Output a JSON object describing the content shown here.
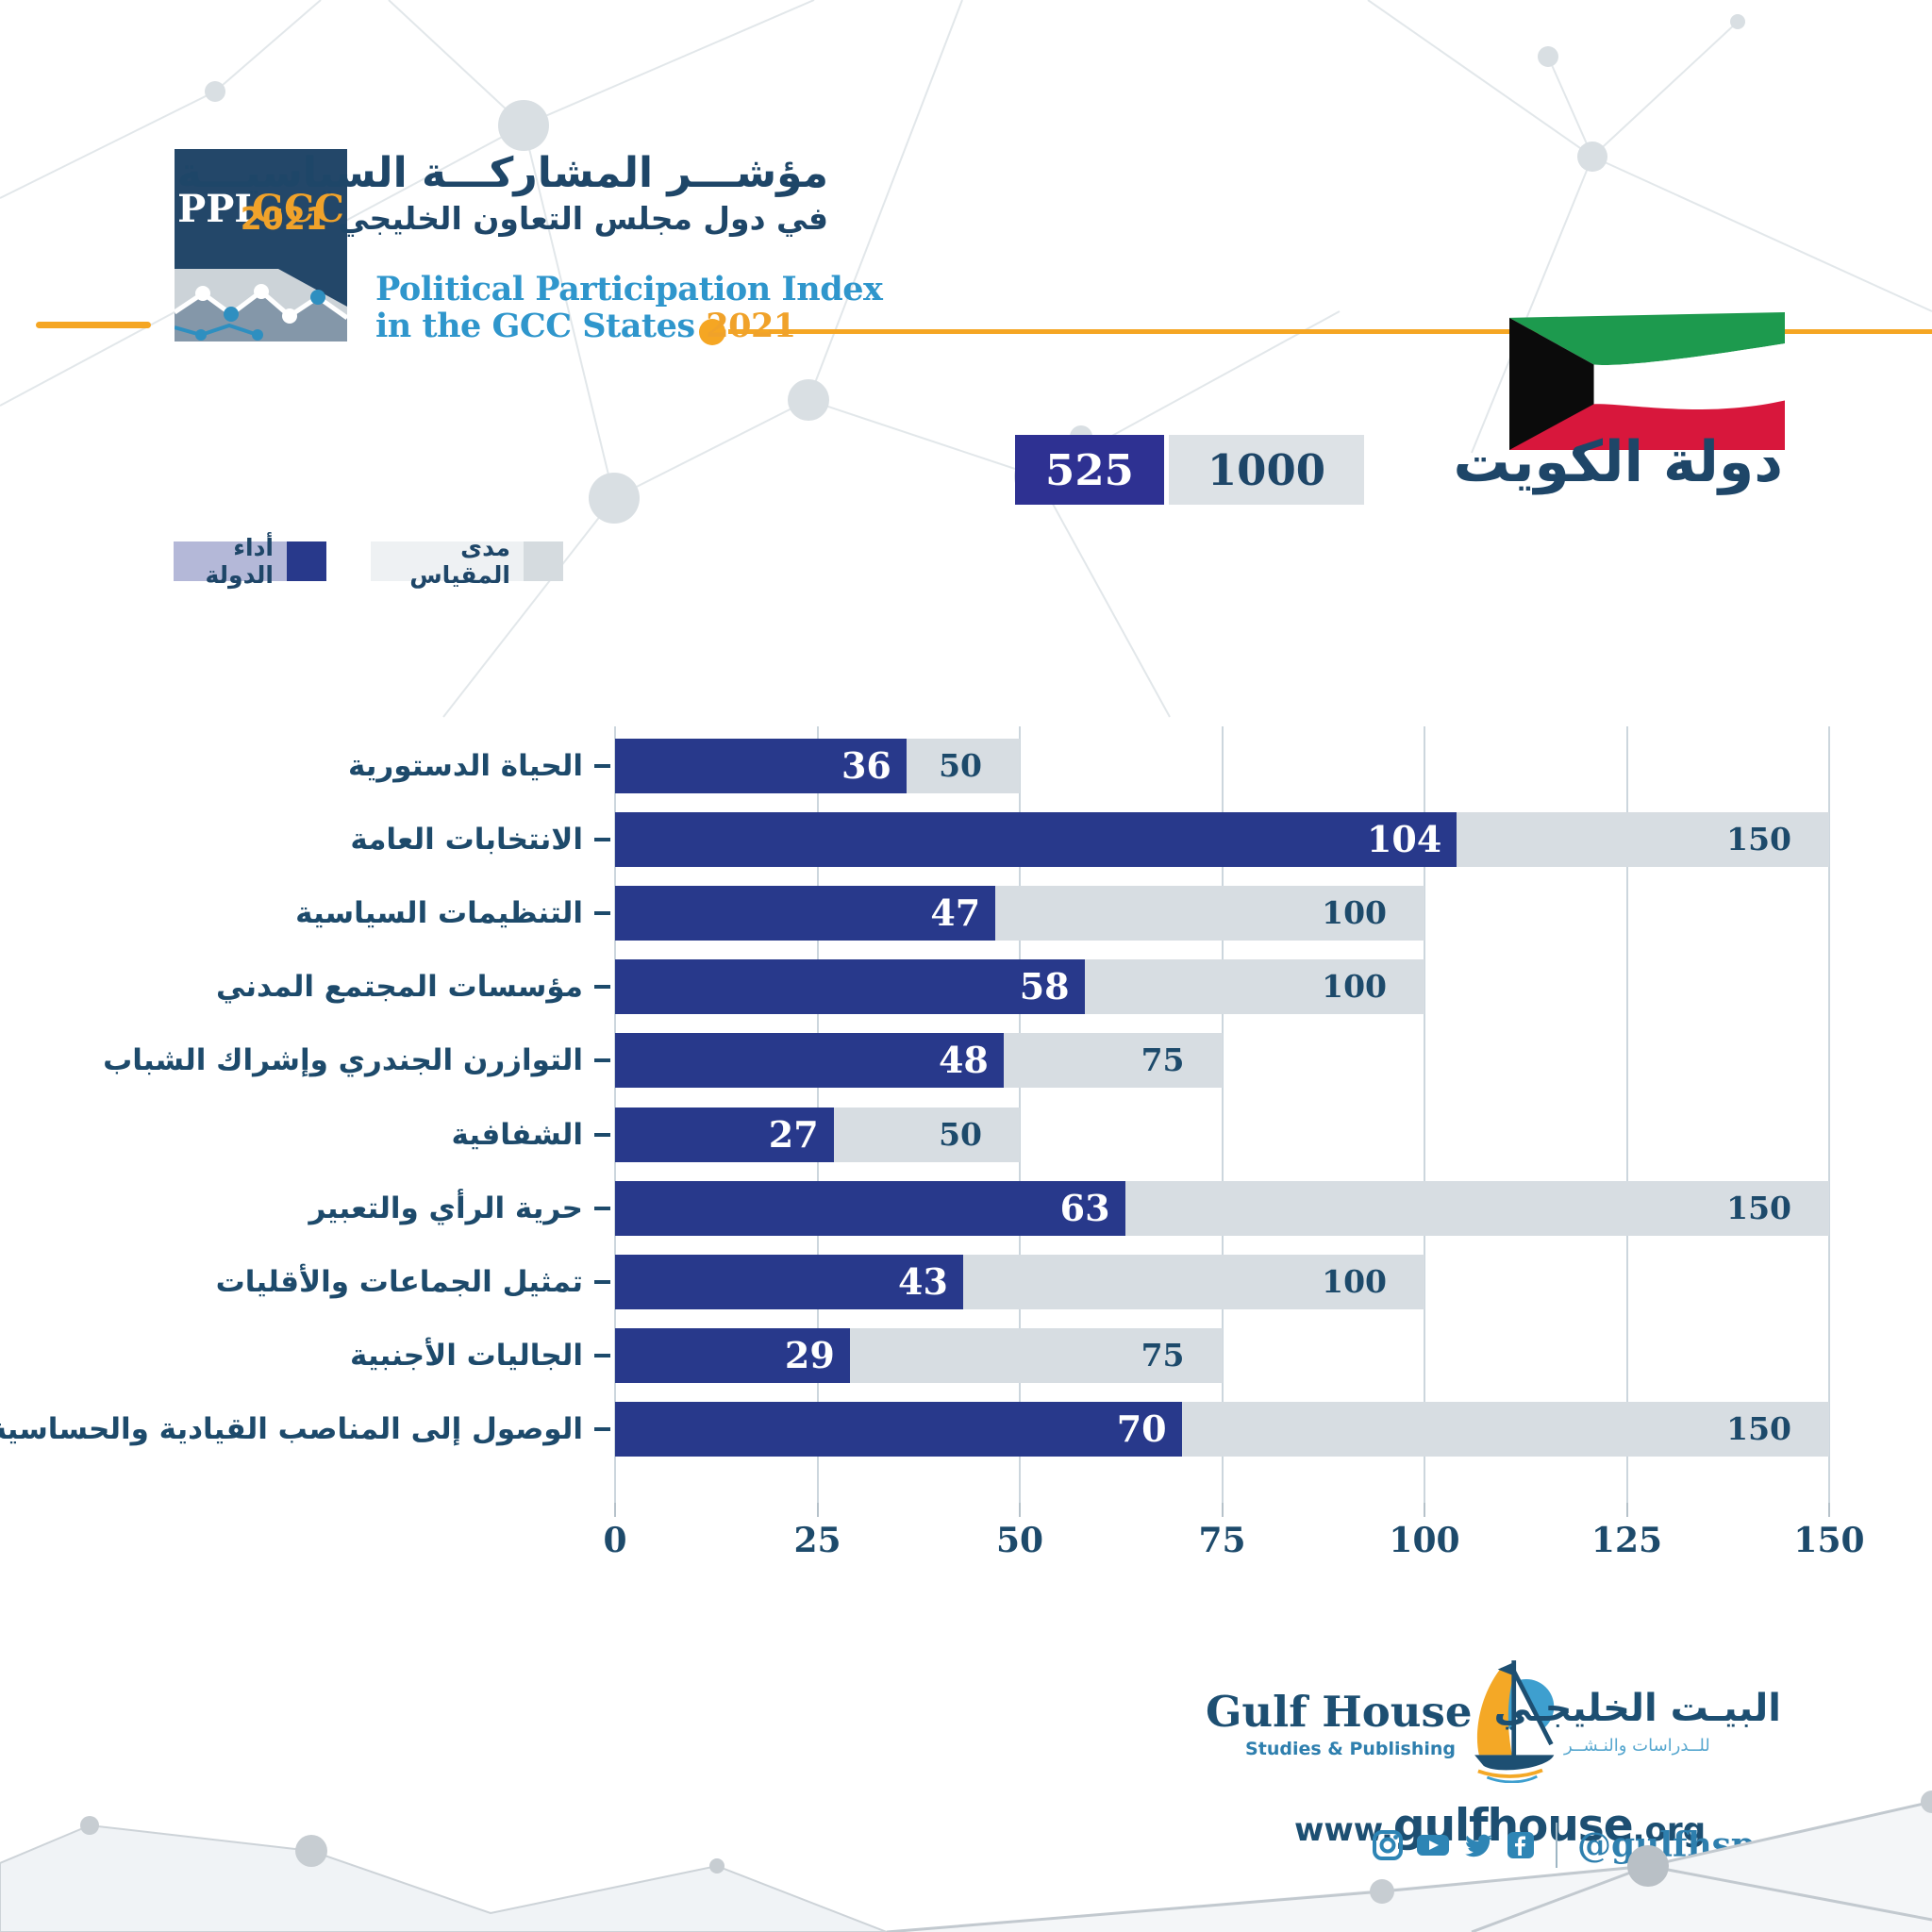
{
  "header": {
    "logo_ppi": "PPI",
    "logo_gcc": "GCC",
    "title_ar_line1": "مؤشـــر المشاركـــة السياسيـــة",
    "title_ar_line2": "في دول مجلس التعاون الخليجي",
    "title_ar_year": "2021",
    "title_en_line1": "Political Participation Index",
    "title_en_line2": "in the GCC States",
    "title_en_year": "2021"
  },
  "country": {
    "name_ar": "دولة الكويت",
    "score": "525",
    "scale_max": "1000",
    "flag": "kuwait-flag"
  },
  "legend": {
    "performance_label": "أداء الدولة",
    "scale_label": "مدى المقياس"
  },
  "chart_data": {
    "type": "bar",
    "orientation": "horizontal",
    "title": "دولة الكويت — مؤشر المشاركة السياسية 2021",
    "categories": [
      "الحياة الدستورية",
      "الانتخابات العامة",
      "التنظيمات السياسية",
      "مؤسسات المجتمع المدني",
      "التوازرن الجندري وإشراك الشباب",
      "الشفافية",
      "حرية الرأي والتعبير",
      "تمثيل الجماعات والأقليات",
      "الجاليات الأجنبية",
      "الوصول إلى المناصب القيادية والحساسية"
    ],
    "series": [
      {
        "name": "أداء الدولة",
        "values": [
          36,
          104,
          47,
          58,
          48,
          27,
          63,
          43,
          29,
          70
        ],
        "color": "#28398b"
      },
      {
        "name": "مدى المقياس",
        "values": [
          50,
          150,
          100,
          100,
          75,
          50,
          150,
          100,
          75,
          150
        ],
        "color": "#d7dde2"
      }
    ],
    "total_score": 525,
    "total_max": 1000,
    "xlim": [
      0,
      150
    ],
    "x_ticks": [
      0,
      25,
      50,
      75,
      100,
      125,
      150
    ],
    "grid": "vertical",
    "legend_position": "top-left"
  },
  "colors": {
    "bar_blue": "#28398b",
    "bar_gray": "#d7dde2",
    "navy_text": "#1d4a6b",
    "accent_orange": "#f5a623",
    "light_blue": "#2f96cc",
    "score_badge_blue": "#2e3192",
    "legend_lavender": "#b4b8d8",
    "logo_navy": "#234769",
    "social_blue": "#2e7fae"
  },
  "footer": {
    "brand_en": "Gulf House",
    "brand_en_sub": "Studies & Publishing",
    "brand_ar": "البيـت الخليجـي",
    "brand_ar_sub": "للــدراسات والنـشــر",
    "website_prefix": "www.",
    "website_name": "gulfhouse",
    "website_suffix": ".org",
    "social_handle": "@gulfhsp",
    "social_icons": [
      "instagram-icon",
      "youtube-icon",
      "twitter-icon",
      "facebook-icon"
    ]
  }
}
